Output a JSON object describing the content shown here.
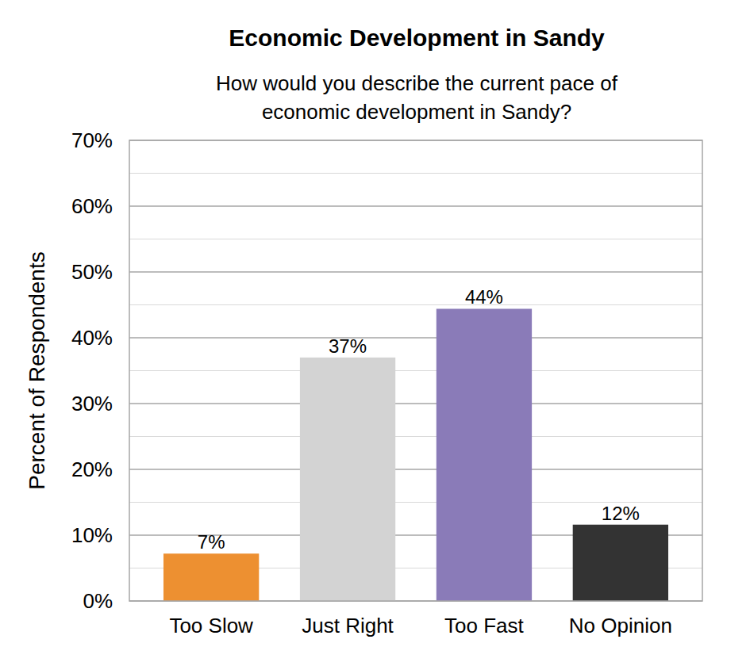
{
  "chart_data": {
    "type": "bar",
    "title": "Economic Development in Sandy",
    "subtitle": [
      "How would you describe the current pace of",
      "economic development in Sandy?"
    ],
    "y_label": "Percent of Respondents",
    "categories": [
      "Too Slow",
      "Just Right",
      "Too Fast",
      "No Opinion"
    ],
    "values": [
      7.2,
      37,
      44.4,
      11.6
    ],
    "value_labels": [
      "7%",
      "37%",
      "44%",
      "12%"
    ],
    "colors": [
      "#ed9031",
      "#d3d3d3",
      "#8a7bb8",
      "#333333"
    ],
    "ylim": [
      0,
      70
    ],
    "yticks": [
      {
        "value": 0,
        "label": "0%"
      },
      {
        "value": 10,
        "label": "10%"
      },
      {
        "value": 20,
        "label": "20%"
      },
      {
        "value": 30,
        "label": "30%"
      },
      {
        "value": 40,
        "label": "40%"
      },
      {
        "value": 50,
        "label": "50%"
      },
      {
        "value": 60,
        "label": "60%"
      },
      {
        "value": 70,
        "label": "70%"
      }
    ],
    "grid": true,
    "data_labels": true
  }
}
